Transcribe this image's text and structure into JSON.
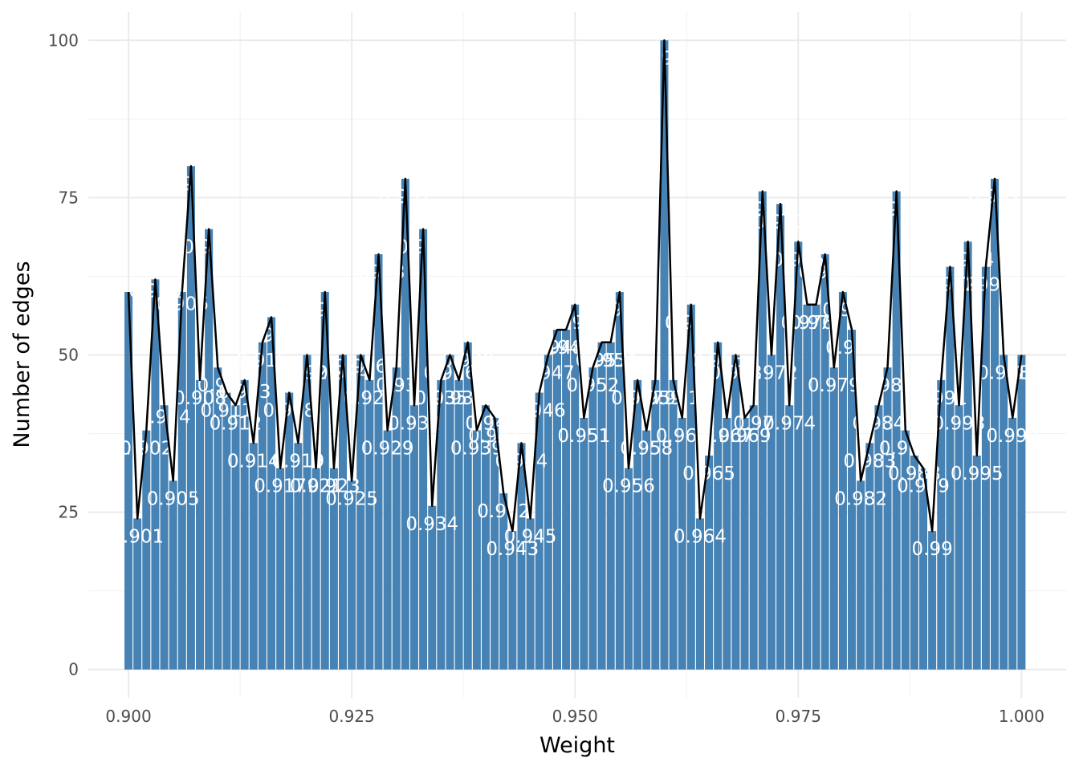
{
  "chart_data": {
    "type": "bar",
    "xlabel": "Weight",
    "ylabel": "Number of edges",
    "xlim": [
      0.8955,
      1.005
    ],
    "ylim": [
      -4.5,
      104.5
    ],
    "x_ticks": [
      0.9,
      0.925,
      0.95,
      0.975,
      1.0
    ],
    "x_tick_labels": [
      "0.900",
      "0.925",
      "0.950",
      "0.975",
      "1.000"
    ],
    "y_ticks": [
      0,
      25,
      50,
      75,
      100
    ],
    "y_tick_labels": [
      "0",
      "25",
      "50",
      "75",
      "100"
    ],
    "grid": true,
    "bar_color": "#4682b4",
    "line_color": "#000000",
    "label_color": "#ffffff",
    "x": [
      0.9,
      0.901,
      0.902,
      0.903,
      0.904,
      0.905,
      0.906,
      0.907,
      0.908,
      0.909,
      0.91,
      0.911,
      0.912,
      0.913,
      0.914,
      0.915,
      0.916,
      0.917,
      0.918,
      0.919,
      0.92,
      0.921,
      0.922,
      0.923,
      0.924,
      0.925,
      0.926,
      0.927,
      0.928,
      0.929,
      0.93,
      0.931,
      0.932,
      0.933,
      0.934,
      0.935,
      0.936,
      0.937,
      0.938,
      0.939,
      0.94,
      0.941,
      0.942,
      0.943,
      0.944,
      0.945,
      0.946,
      0.947,
      0.948,
      0.949,
      0.95,
      0.951,
      0.952,
      0.953,
      0.954,
      0.955,
      0.956,
      0.957,
      0.958,
      0.959,
      0.96,
      0.961,
      0.962,
      0.963,
      0.964,
      0.965,
      0.966,
      0.967,
      0.968,
      0.969,
      0.97,
      0.971,
      0.972,
      0.973,
      0.974,
      0.975,
      0.976,
      0.977,
      0.978,
      0.979,
      0.98,
      0.981,
      0.982,
      0.983,
      0.984,
      0.985,
      0.986,
      0.987,
      0.988,
      0.989,
      0.99,
      0.991,
      0.992,
      0.993,
      0.994,
      0.995,
      0.996,
      0.997,
      0.998,
      0.999,
      1.0
    ],
    "values": [
      60,
      24,
      38,
      62,
      42,
      30,
      60,
      80,
      46,
      70,
      48,
      44,
      42,
      46,
      36,
      52,
      56,
      32,
      44,
      36,
      50,
      32,
      60,
      32,
      50,
      30,
      50,
      46,
      66,
      38,
      48,
      78,
      42,
      70,
      26,
      46,
      50,
      46,
      52,
      38,
      42,
      40,
      28,
      22,
      36,
      24,
      44,
      50,
      54,
      54,
      58,
      40,
      48,
      52,
      52,
      60,
      32,
      46,
      38,
      46,
      100,
      46,
      40,
      58,
      24,
      34,
      52,
      40,
      50,
      40,
      42,
      76,
      50,
      74,
      42,
      68,
      58,
      58,
      66,
      48,
      60,
      54,
      30,
      36,
      42,
      48,
      76,
      38,
      34,
      32,
      22,
      46,
      64,
      42,
      68,
      34,
      64,
      78,
      50,
      40,
      50
    ],
    "bar_labels": [
      "0.9",
      "0.901",
      "0.902",
      "0.903",
      "0.904",
      "0.905",
      "0.906",
      "0.907",
      "0.908",
      "0.909",
      "0.91",
      "0.911",
      "0.912",
      "0.913",
      "0.914",
      "0.915",
      "0.916",
      "0.917",
      "0.918",
      "0.919",
      "0.92",
      "0.921",
      "0.922",
      "0.923",
      "0.924",
      "0.925",
      "0.926",
      "0.927",
      "0.928",
      "0.929",
      "0.93",
      "0.931",
      "0.932",
      "0.933",
      "0.934",
      "0.935",
      "0.936",
      "0.937",
      "0.938",
      "0.939",
      "0.94",
      "0.941",
      "0.942",
      "0.943",
      "0.944",
      "0.945",
      "0.946",
      "0.947",
      "0.948",
      "0.949",
      "0.95",
      "0.951",
      "0.952",
      "0.953",
      "0.954",
      "0.955",
      "0.956",
      "0.957",
      "0.958",
      "0.959",
      "0.96",
      "0.961",
      "0.962",
      "0.963",
      "0.964",
      "0.965",
      "0.966",
      "0.967",
      "0.968",
      "0.969",
      "0.97",
      "0.971",
      "0.972",
      "0.973",
      "0.974",
      "0.975",
      "0.976",
      "0.977",
      "0.978",
      "0.979",
      "0.98",
      "0.981",
      "0.982",
      "0.983",
      "0.984",
      "0.985",
      "0.986",
      "0.987",
      "0.988",
      "0.989",
      "0.99",
      "0.991",
      "0.992",
      "0.993",
      "0.994",
      "0.995",
      "0.996",
      "0.997",
      "0.998",
      "0.999",
      "1"
    ],
    "label_y": [
      35,
      21,
      35,
      60,
      40,
      27,
      58,
      77,
      43,
      67,
      45,
      41,
      39,
      44,
      33,
      49,
      53,
      29,
      41,
      33,
      47,
      29,
      57,
      29,
      47,
      27,
      48,
      43,
      63,
      35,
      45,
      75,
      39,
      67,
      23,
      43,
      47,
      43,
      49,
      35,
      39,
      37,
      25,
      19,
      33,
      21,
      41,
      47,
      51,
      51,
      55,
      37,
      45,
      49,
      49,
      57,
      29,
      43,
      35,
      43,
      97,
      43,
      37,
      55,
      21,
      31,
      49,
      37,
      47,
      37,
      39,
      73,
      47,
      71,
      39,
      65,
      55,
      55,
      63,
      45,
      57,
      51,
      27,
      33,
      39,
      45,
      73,
      35,
      31,
      29,
      19,
      43,
      61,
      39,
      65,
      31,
      61,
      75,
      47,
      37,
      47
    ]
  }
}
